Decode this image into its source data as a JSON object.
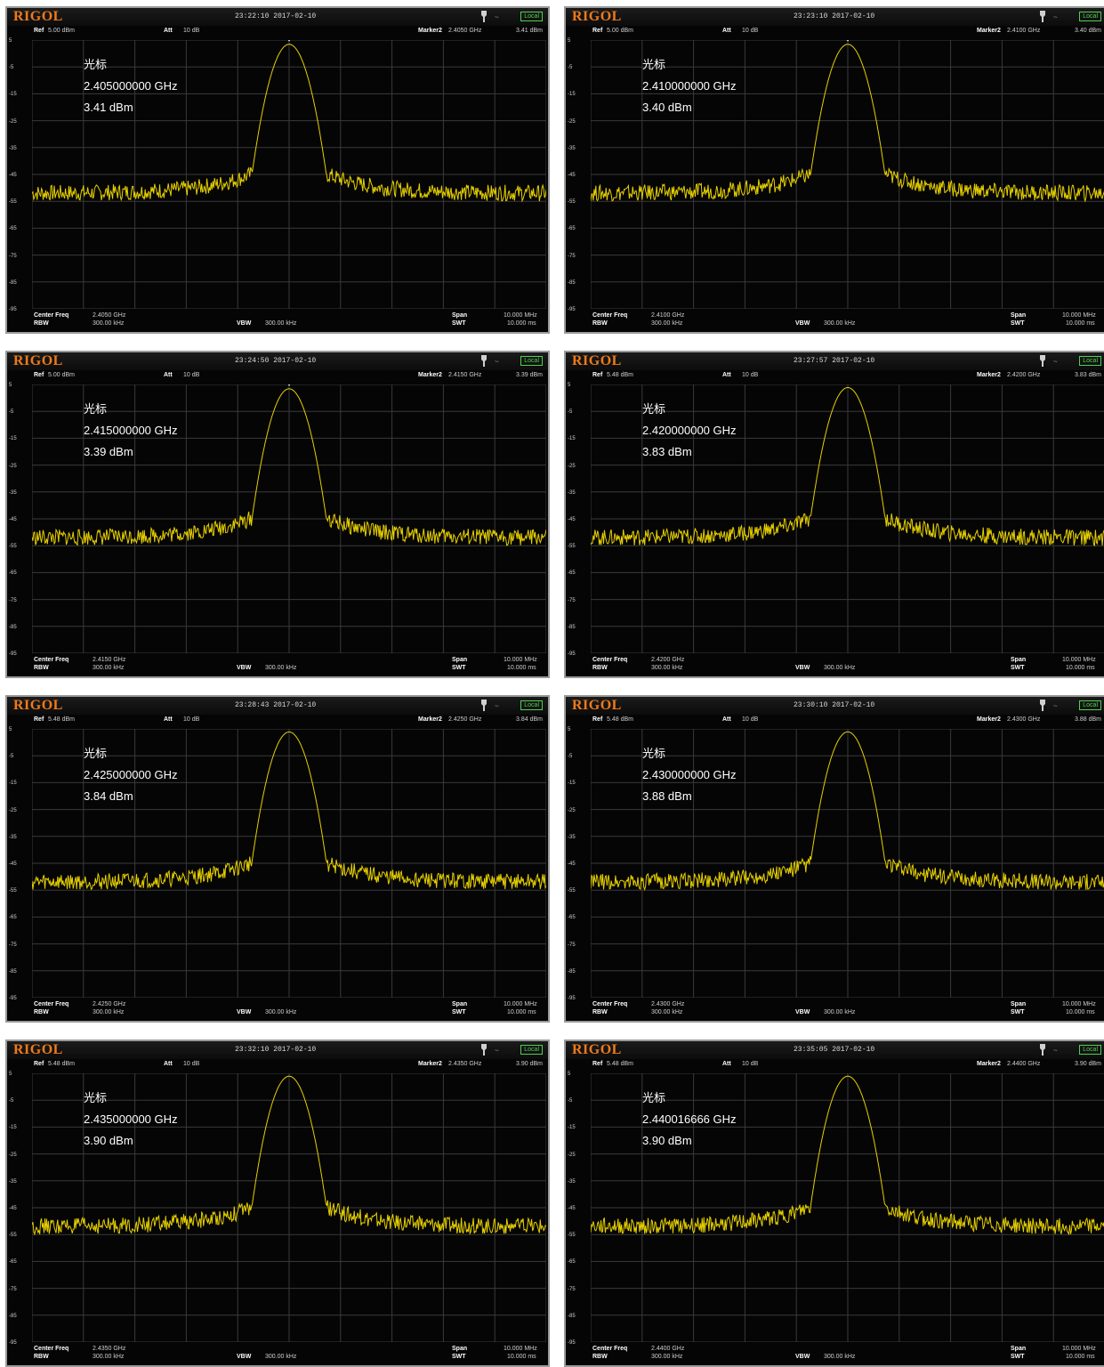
{
  "colors": {
    "trace": "#e6d000",
    "grid": "#3a3a3a",
    "background": "#050505",
    "logo": "#f07a1a",
    "badge": "#4fd04f"
  },
  "screen": {
    "logo": "RIGOL",
    "local_badge": "Local",
    "ref_label": "Ref",
    "att_label": "Att",
    "att_value": "10 dB",
    "marker_label": "Marker2",
    "center_label": "Center Freq",
    "rbw_label": "RBW",
    "rbw_value": "300.00 kHz",
    "vbw_label": "VBW",
    "vbw_value": "300.00 kHz",
    "span_label": "Span",
    "span_value": "10.000 MHz",
    "swt_label": "SWT",
    "swt_value": "10.000 ms",
    "marker_title": "光标"
  },
  "panels": [
    {
      "datetime": "23:22:10 2017-02-10",
      "ref": "5.00 dBm",
      "marker_freq": "2.4050 GHz",
      "marker_level": "3.41 dBm",
      "center": "2.4050 GHz",
      "mk_freq": "2.405000000 GHz",
      "mk_level": "3.41 dBm"
    },
    {
      "datetime": "23:23:10 2017-02-10",
      "ref": "5.00 dBm",
      "marker_freq": "2.4100 GHz",
      "marker_level": "3.40 dBm",
      "center": "2.4100 GHz",
      "mk_freq": "2.410000000 GHz",
      "mk_level": "3.40 dBm"
    },
    {
      "datetime": "23:24:50 2017-02-10",
      "ref": "5.00 dBm",
      "marker_freq": "2.4150 GHz",
      "marker_level": "3.39 dBm",
      "center": "2.4150 GHz",
      "mk_freq": "2.415000000 GHz",
      "mk_level": "3.39 dBm"
    },
    {
      "datetime": "23:27:57 2017-02-10",
      "ref": "5.48 dBm",
      "marker_freq": "2.4200 GHz",
      "marker_level": "3.83 dBm",
      "center": "2.4200 GHz",
      "mk_freq": "2.420000000 GHz",
      "mk_level": "3.83 dBm"
    },
    {
      "datetime": "23:28:43 2017-02-10",
      "ref": "5.48 dBm",
      "marker_freq": "2.4250 GHz",
      "marker_level": "3.84 dBm",
      "center": "2.4250 GHz",
      "mk_freq": "2.425000000 GHz",
      "mk_level": "3.84 dBm"
    },
    {
      "datetime": "23:30:10 2017-02-10",
      "ref": "5.48 dBm",
      "marker_freq": "2.4300 GHz",
      "marker_level": "3.88 dBm",
      "center": "2.4300 GHz",
      "mk_freq": "2.430000000 GHz",
      "mk_level": "3.88 dBm"
    },
    {
      "datetime": "23:32:10 2017-02-10",
      "ref": "5.48 dBm",
      "marker_freq": "2.4350 GHz",
      "marker_level": "3.90 dBm",
      "center": "2.4350 GHz",
      "mk_freq": "2.435000000 GHz",
      "mk_level": "3.90 dBm"
    },
    {
      "datetime": "23:35:05 2017-02-10",
      "ref": "5.48 dBm",
      "marker_freq": "2.4400 GHz",
      "marker_level": "3.90 dBm",
      "center": "2.4400 GHz",
      "mk_freq": "2.440016666 GHz",
      "mk_level": "3.90 dBm"
    }
  ],
  "chart_data": [
    {
      "type": "line",
      "xlabel": "",
      "ylabel": "",
      "xlim": [
        2.4,
        2.41
      ],
      "ylim": [
        -95,
        5
      ],
      "series": [
        {
          "values_note": "",
          "peak": [
            2.405,
            3.41
          ],
          "floor": -52
        }
      ]
    },
    {
      "type": "line",
      "xlabel": "",
      "ylabel": "",
      "xlim": [
        2.405,
        2.415
      ],
      "ylim": [
        -95,
        5
      ],
      "series": [
        {
          "peak": [
            2.41,
            3.4
          ],
          "floor": -52
        }
      ]
    },
    {
      "type": "line",
      "xlabel": "",
      "ylabel": "",
      "xlim": [
        2.41,
        2.42
      ],
      "ylim": [
        -95,
        5
      ],
      "series": [
        {
          "peak": [
            2.415,
            3.39
          ],
          "floor": -52
        }
      ]
    },
    {
      "type": "line",
      "xlabel": "",
      "ylabel": "",
      "xlim": [
        2.415,
        2.425
      ],
      "ylim": [
        -95,
        5
      ],
      "series": [
        {
          "peak": [
            2.42,
            3.83
          ],
          "floor": -52
        }
      ]
    },
    {
      "type": "line",
      "xlabel": "",
      "ylabel": "",
      "xlim": [
        2.42,
        2.43
      ],
      "ylim": [
        -95,
        5
      ],
      "series": [
        {
          "peak": [
            2.425,
            3.84
          ],
          "floor": -52
        }
      ]
    },
    {
      "type": "line",
      "xlabel": "",
      "ylabel": "",
      "xlim": [
        2.425,
        2.435
      ],
      "ylim": [
        -95,
        5
      ],
      "series": [
        {
          "peak": [
            2.43,
            3.88
          ],
          "floor": -52
        }
      ]
    },
    {
      "type": "line",
      "xlabel": "",
      "ylabel": "",
      "xlim": [
        2.43,
        2.44
      ],
      "ylim": [
        -95,
        5
      ],
      "series": [
        {
          "peak": [
            2.435,
            3.9
          ],
          "floor": -52
        }
      ]
    },
    {
      "type": "line",
      "xlabel": "",
      "ylabel": "",
      "xlim": [
        2.435,
        2.445
      ],
      "ylim": [
        -95,
        5
      ],
      "series": [
        {
          "peak": [
            2.44,
            3.9
          ],
          "floor": -52
        }
      ]
    }
  ],
  "y_ticks": [
    "5",
    "-5",
    "-15",
    "-25",
    "-35",
    "-45",
    "-55",
    "-65",
    "-75",
    "-85",
    "-95"
  ]
}
